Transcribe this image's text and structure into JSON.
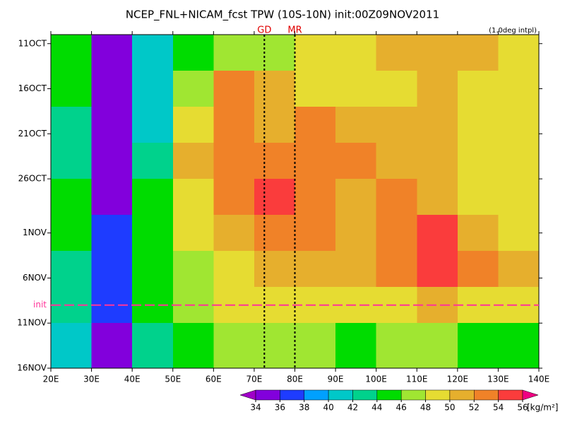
{
  "chart_data": {
    "type": "heatmap",
    "title": "NCEP_FNL+NICAM_fcst TPW (10S-10N) init:00Z09NOV2011",
    "subtitle": "(1.0deg intpl)",
    "x": [
      25,
      35,
      45,
      55,
      65,
      75,
      85,
      95,
      105,
      115,
      125,
      135
    ],
    "y": [
      285,
      289,
      293,
      297,
      301,
      305,
      309,
      313,
      317
    ],
    "z": [
      [
        44,
        35,
        40,
        45,
        46,
        47,
        49,
        48,
        50,
        51,
        50,
        48
      ],
      [
        44,
        35,
        40,
        46,
        52,
        51,
        49,
        48,
        49,
        50,
        49,
        48
      ],
      [
        43,
        35,
        41,
        49,
        53,
        51,
        52,
        51,
        50,
        50,
        49,
        48
      ],
      [
        43,
        35,
        43,
        50,
        52,
        53,
        53,
        52,
        51,
        51,
        49,
        48
      ],
      [
        44,
        35,
        44,
        48,
        52,
        54,
        52,
        51,
        52,
        50,
        49,
        48
      ],
      [
        45,
        36,
        45,
        48,
        51,
        52,
        52,
        51,
        52,
        54,
        51,
        49
      ],
      [
        43,
        36,
        45,
        47,
        49,
        51,
        51,
        50,
        52,
        55,
        52,
        50
      ],
      [
        42,
        36,
        44,
        46,
        48,
        49,
        49,
        49,
        49,
        50,
        49,
        48
      ],
      [
        41,
        35,
        43,
        44,
        46,
        47,
        46,
        45,
        46,
        46,
        45,
        45
      ]
    ],
    "xlim": [
      20,
      140
    ],
    "ylim": [
      283,
      320
    ],
    "y_inverted": true,
    "xticks": [
      {
        "value": 20,
        "label": "20E"
      },
      {
        "value": 30,
        "label": "30E"
      },
      {
        "value": 40,
        "label": "40E"
      },
      {
        "value": 50,
        "label": "50E"
      },
      {
        "value": 60,
        "label": "60E"
      },
      {
        "value": 70,
        "label": "70E"
      },
      {
        "value": 80,
        "label": "80E"
      },
      {
        "value": 90,
        "label": "90E"
      },
      {
        "value": 100,
        "label": "100E"
      },
      {
        "value": 110,
        "label": "110E"
      },
      {
        "value": 120,
        "label": "120E"
      },
      {
        "value": 130,
        "label": "130E"
      },
      {
        "value": 140,
        "label": "140E"
      }
    ],
    "yticks": [
      {
        "value": 284,
        "label": "11OCT"
      },
      {
        "value": 289,
        "label": "16OCT"
      },
      {
        "value": 294,
        "label": "21OCT"
      },
      {
        "value": 299,
        "label": "26OCT"
      },
      {
        "value": 305,
        "label": "1NOV"
      },
      {
        "value": 310,
        "label": "6NOV"
      },
      {
        "value": 315,
        "label": "11NOV"
      },
      {
        "value": 320,
        "label": "16NOV"
      }
    ],
    "vlines": [
      {
        "value": 72.5,
        "label": "GD"
      },
      {
        "value": 80,
        "label": "MR"
      }
    ],
    "hline": {
      "value": 313,
      "label": "init",
      "color": "#ff3399"
    },
    "levels": [
      34,
      36,
      38,
      40,
      42,
      44,
      46,
      48,
      50,
      52,
      54,
      56
    ],
    "colors": [
      "#a000c8",
      "#8200dc",
      "#1e3cff",
      "#00a0ff",
      "#00c8c8",
      "#00d28c",
      "#00dc00",
      "#a0e632",
      "#e6dc32",
      "#e6af2d",
      "#f08228",
      "#fa3c3c",
      "#f00082"
    ],
    "colorbar_label": "[kg/m²]"
  }
}
